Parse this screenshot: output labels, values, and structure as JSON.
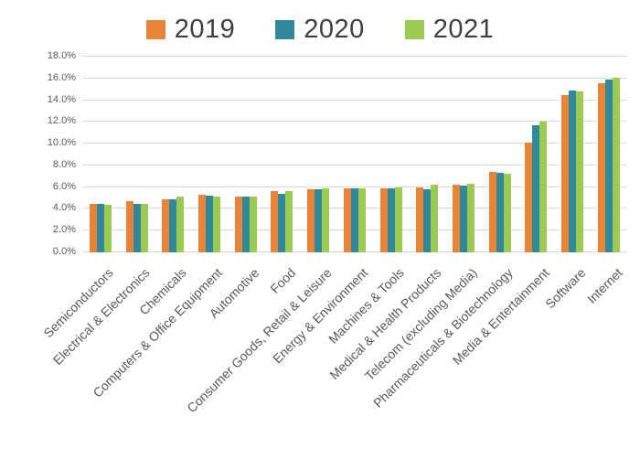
{
  "chart_data": {
    "type": "bar",
    "title": "",
    "xlabel": "",
    "ylabel": "",
    "ylim": [
      0,
      18
    ],
    "ytick_step": 2,
    "ytick_labels": [
      "0.0%",
      "2.0%",
      "4.0%",
      "6.0%",
      "8.0%",
      "10.0%",
      "12.0%",
      "14.0%",
      "16.0%",
      "18.0%"
    ],
    "grid": true,
    "legend_position": "top",
    "value_unit": "percent",
    "categories": [
      "Semiconductors",
      "Electrical & Electronics",
      "Chemicals",
      "Computers & Office Equipment",
      "Automotive",
      "Food",
      "Consumer Goods, Retail & Leisure",
      "Energy & Environment",
      "Machines & Tools",
      "Medical & Health Products",
      "Telecom (excluding Media)",
      "Pharmaceuticals & Biotechnology",
      "Media & Entertainment",
      "Software",
      "Internet"
    ],
    "series": [
      {
        "name": "2019",
        "color": "#E8833A",
        "values": [
          4.5,
          4.7,
          4.9,
          5.3,
          5.1,
          5.6,
          5.8,
          5.9,
          5.9,
          6.0,
          6.2,
          7.4,
          10.1,
          14.5,
          15.6
        ]
      },
      {
        "name": "2020",
        "color": "#31889B",
        "values": [
          4.5,
          4.5,
          4.9,
          5.2,
          5.1,
          5.4,
          5.8,
          5.9,
          5.9,
          5.8,
          6.1,
          7.3,
          11.7,
          14.9,
          15.9
        ]
      },
      {
        "name": "2021",
        "color": "#9BCB53",
        "values": [
          4.4,
          4.5,
          5.1,
          5.1,
          5.1,
          5.6,
          5.9,
          5.9,
          6.0,
          6.2,
          6.3,
          7.2,
          12.0,
          14.8,
          16.1
        ]
      }
    ],
    "colors": {
      "gridline": "#d9d9d9",
      "tick_label": "#595959",
      "legend_text": "#3f3f3f",
      "background": "#ffffff"
    }
  }
}
